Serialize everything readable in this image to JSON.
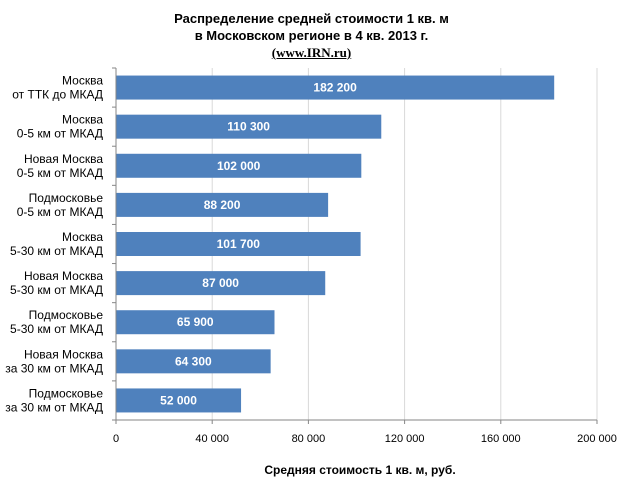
{
  "chart_data": {
    "type": "bar",
    "orientation": "horizontal",
    "title_lines": [
      "Распределение средней стоимости 1 кв. м",
      "в Московском регионе в 4 кв. 2013 г.",
      "(www.IRN.ru)"
    ],
    "categories": [
      [
        "Москва",
        "от ТТК до МКАД"
      ],
      [
        "Москва",
        "0-5 км от МКАД"
      ],
      [
        "Новая Москва",
        "0-5 км от МКАД"
      ],
      [
        "Подмосковье",
        "0-5 км от МКАД"
      ],
      [
        "Москва",
        "5-30 км от МКАД"
      ],
      [
        "Новая Москва",
        "5-30 км от МКАД"
      ],
      [
        "Подмосковье",
        "5-30 км от МКАД"
      ],
      [
        "Новая Москва",
        "за 30 км от МКАД"
      ],
      [
        "Подмосковье",
        "за 30 км от МКАД"
      ]
    ],
    "values": [
      182200,
      110300,
      102000,
      88200,
      101700,
      87000,
      65900,
      64300,
      52000
    ],
    "value_labels": [
      "182 200",
      "110 300",
      "102 000",
      "88 200",
      "101 700",
      "87 000",
      "65 900",
      "64 300",
      "52 000"
    ],
    "xlim": [
      0,
      200000
    ],
    "xticks": [
      0,
      40000,
      80000,
      120000,
      160000,
      200000
    ],
    "xtick_labels": [
      "0",
      "40 000",
      "80 000",
      "120 000",
      "160 000",
      "200 000"
    ],
    "xlabel": "Средняя стоимость 1 кв. м, руб.",
    "ylabel": "",
    "grid": "vertical",
    "legend": "none",
    "bar_color": "#4F81BD"
  }
}
